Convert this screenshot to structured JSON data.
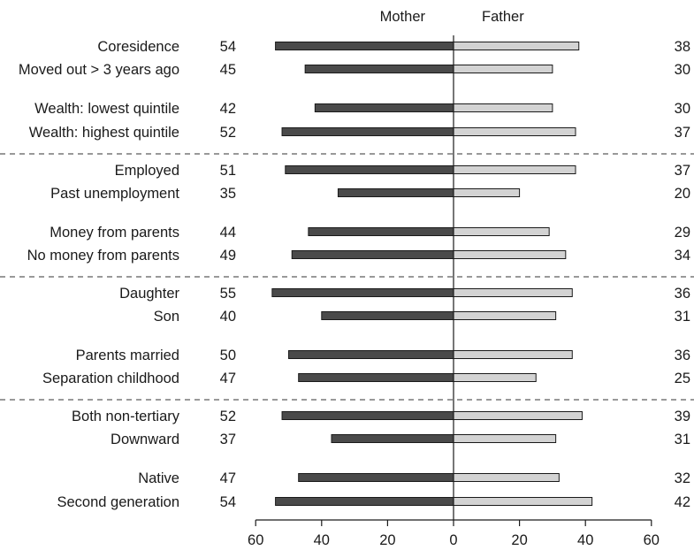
{
  "chart_data": {
    "type": "bar",
    "orientation": "horizontal",
    "layout": "diverging",
    "headers": {
      "left": "Mother",
      "right": "Father"
    },
    "series": [
      {
        "name": "Mother",
        "color": "#4a4a4a"
      },
      {
        "name": "Father",
        "color": "#d3d3d3"
      }
    ],
    "groups": [
      {
        "rows": [
          {
            "label": "Coresidence",
            "mother": 54,
            "father": 38
          },
          {
            "label": "Moved out > 3 years ago",
            "mother": 45,
            "father": 30
          },
          {
            "label": "Wealth: lowest quintile",
            "mother": 42,
            "father": 30
          },
          {
            "label": "Wealth: highest quintile",
            "mother": 52,
            "father": 37
          }
        ]
      },
      {
        "rows": [
          {
            "label": "Employed",
            "mother": 51,
            "father": 37
          },
          {
            "label": "Past unemployment",
            "mother": 35,
            "father": 20
          },
          {
            "label": "Money from parents",
            "mother": 44,
            "father": 29
          },
          {
            "label": "No money from parents",
            "mother": 49,
            "father": 34
          }
        ]
      },
      {
        "rows": [
          {
            "label": "Daughter",
            "mother": 55,
            "father": 36
          },
          {
            "label": "Son",
            "mother": 40,
            "father": 31
          },
          {
            "label": "Parents married",
            "mother": 50,
            "father": 36
          },
          {
            "label": "Separation childhood",
            "mother": 47,
            "father": 25
          }
        ]
      },
      {
        "rows": [
          {
            "label": "Both non-tertiary",
            "mother": 52,
            "father": 39
          },
          {
            "label": "Downward",
            "mother": 37,
            "father": 31
          },
          {
            "label": "Native",
            "mother": 47,
            "father": 32
          },
          {
            "label": "Second generation",
            "mother": 54,
            "father": 42
          }
        ]
      }
    ],
    "x_ticks": [
      "60",
      "40",
      "20",
      "0",
      "20",
      "40",
      "60"
    ],
    "xlim": [
      -60,
      60
    ],
    "grid": false,
    "group_separator": "dashed"
  }
}
